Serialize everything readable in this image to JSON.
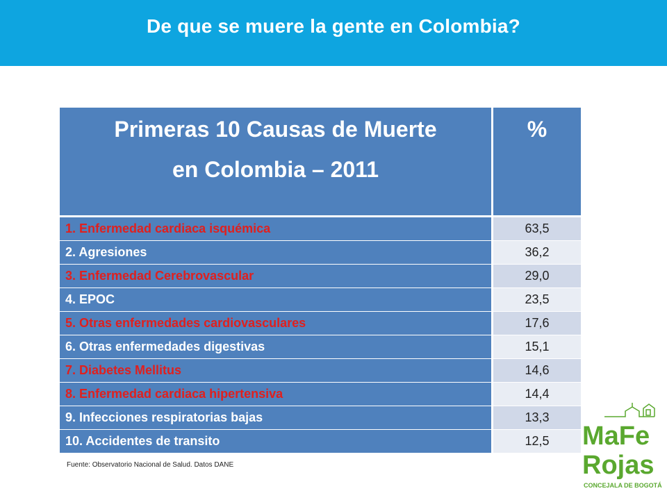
{
  "header": {
    "title": "De que se muere la gente en Colombia?"
  },
  "table": {
    "title_line1": "Primeras 10 Causas de Muerte",
    "title_line2": "en Colombia – 2011",
    "pct_header": "%",
    "rows": [
      {
        "cause": "1. Enfermedad cardiaca isquémica",
        "value": "63,5",
        "color": "#e0201e"
      },
      {
        "cause": "2. Agresiones",
        "value": "36,2",
        "color": "#ffffff"
      },
      {
        "cause": "3. Enfermedad Cerebrovascular",
        "value": "29,0",
        "color": "#e0201e"
      },
      {
        "cause": "4. EPOC",
        "value": "23,5",
        "color": "#ffffff"
      },
      {
        "cause": "5. Otras enfermedades cardiovasculares",
        "value": "17,6",
        "color": "#e0201e"
      },
      {
        "cause": "6. Otras enfermedades digestivas",
        "value": "15,1",
        "color": "#ffffff"
      },
      {
        "cause": "7. Diabetes Mellitus",
        "value": "14,6",
        "color": "#e0201e"
      },
      {
        "cause": "8. Enfermedad cardiaca hipertensiva",
        "value": "14,4",
        "color": "#e0201e"
      },
      {
        "cause": "9. Infecciones respiratorias bajas",
        "value": "13,3",
        "color": "#ffffff"
      },
      {
        "cause": "10. Accidentes de transito",
        "value": "12,5",
        "color": "#ffffff"
      }
    ]
  },
  "source": "Fuente: Observatorio Nacional de Salud. Datos DANE",
  "logo": {
    "line1": "MaFe",
    "line2": "Rojas",
    "tagline": "CONCEJALA DE BOGOTÁ"
  },
  "colors": {
    "header_bg": "#0ea5e0",
    "table_header_bg": "#4f81bd",
    "highlight_text": "#e0201e",
    "logo_green": "#5aa82f"
  }
}
